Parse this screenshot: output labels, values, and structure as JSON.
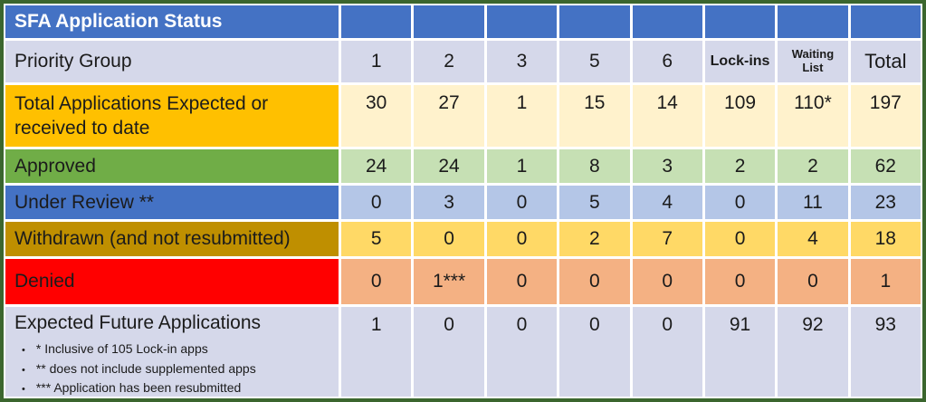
{
  "chart_data": {
    "type": "table",
    "title": "SFA Application Status",
    "column_header_label": "Priority Group",
    "columns": [
      "1",
      "2",
      "3",
      "5",
      "6",
      "Lock-ins",
      "Waiting List",
      "Total"
    ],
    "rows": [
      {
        "label": "Total Applications Expected or received to date",
        "values": [
          "30",
          "27",
          "1",
          "15",
          "14",
          "109",
          "110*",
          "197"
        ]
      },
      {
        "label": "Approved",
        "values": [
          "24",
          "24",
          "1",
          "8",
          "3",
          "2",
          "2",
          "62"
        ]
      },
      {
        "label": "Under Review **",
        "values": [
          "0",
          "3",
          "0",
          "5",
          "4",
          "0",
          "11",
          "23"
        ]
      },
      {
        "label": "Withdrawn (and not resubmitted)",
        "values": [
          "5",
          "0",
          "0",
          "2",
          "7",
          "0",
          "4",
          "18"
        ]
      },
      {
        "label": "Denied",
        "values": [
          "0",
          "1***",
          "0",
          "0",
          "0",
          "0",
          "0",
          "1"
        ]
      },
      {
        "label": "Expected Future Applications",
        "values": [
          "1",
          "0",
          "0",
          "0",
          "0",
          "91",
          "92",
          "93"
        ]
      }
    ],
    "footnotes": [
      "* Inclusive of 105 Lock-in apps",
      "** does not include supplemented apps",
      "*** Application has been resubmitted"
    ],
    "bullet_glyph": "•"
  },
  "colors": {
    "outer_border_green": "#3B662E",
    "header_blue": "#4472C4",
    "lavender": "#D5D8EA",
    "gold_label": "#FFC000",
    "cream": "#FFF2CC",
    "green_label": "#70AD47",
    "light_green": "#C6E0B4",
    "light_blue": "#B4C6E7",
    "dark_gold_label": "#BF8F00",
    "light_gold": "#FFD966",
    "red_label": "#FF0000",
    "peach": "#F4B183",
    "gridline_white": "#FFFFFF",
    "title_text": "#FFFFFF",
    "body_text": "#1B1B1B"
  }
}
